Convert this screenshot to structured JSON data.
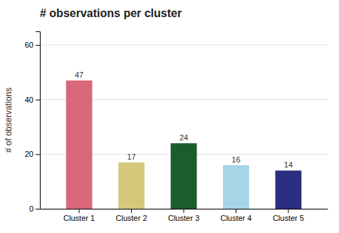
{
  "chart_data": {
    "type": "bar",
    "title": "# observations per cluster",
    "ylabel": "# of observations",
    "categories": [
      "Cluster 1",
      "Cluster 2",
      "Cluster 3",
      "Cluster 4",
      "Cluster 5"
    ],
    "values": [
      47,
      17,
      24,
      16,
      14
    ],
    "colors": [
      "#d9697a",
      "#d4c87a",
      "#1a5e2e",
      "#a8d4e8",
      "#2b2d7e"
    ],
    "ylim": [
      0,
      65
    ],
    "yticks": [
      0,
      20,
      40,
      60
    ],
    "grid": true,
    "data_labels": true
  }
}
